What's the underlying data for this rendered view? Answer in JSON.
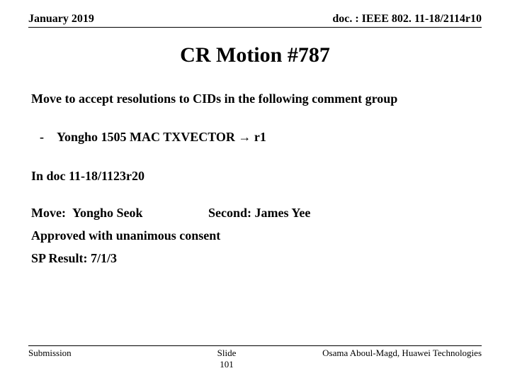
{
  "header": {
    "date": "January 2019",
    "docref": "doc. : IEEE 802. 11-18/2114r10"
  },
  "title": "CR Motion #787",
  "body": {
    "intro": "Move to accept resolutions to CIDs in the following comment group",
    "bullet": {
      "dash": "-",
      "text_prefix": "Yongho 1505 MAC TXVECTOR ",
      "arrow": "→",
      "text_suffix": " r1"
    },
    "docline": "In doc 11-18/1123r20",
    "move_label": "Move:",
    "mover": "Yongho Seok",
    "second_label": "Second:",
    "seconder": "James Yee",
    "approved": "Approved with unanimous consent",
    "sp_result": "SP Result: 7/1/3"
  },
  "footer": {
    "left": "Submission",
    "center_line1": "Slide",
    "center_line2": "101",
    "right": "Osama Aboul-Magd, Huawei Technologies"
  }
}
